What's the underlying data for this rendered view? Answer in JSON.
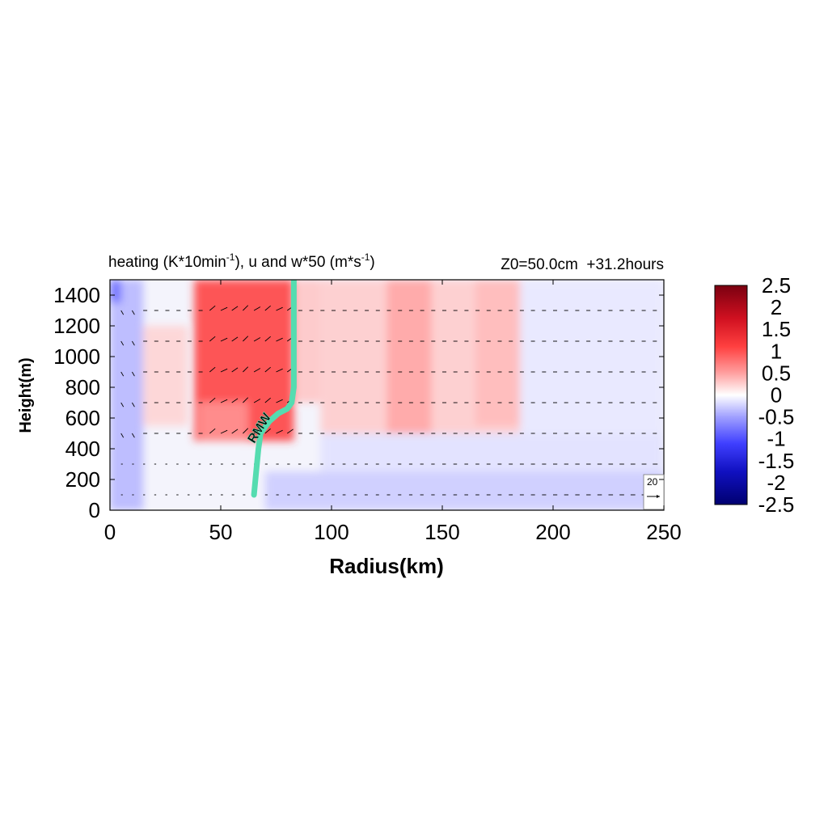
{
  "chart_data": {
    "type": "heatmap",
    "title": "heating (K*10min",
    "title_sup1": "-1",
    "title_mid": "), u and w*50 (m*s",
    "title_sup2": "-1",
    "title_end": ")",
    "subtitle_right": "Z0=50.0cm  +31.2hours",
    "xlabel": "Radius(km)",
    "ylabel": "Height(m)",
    "xlim": [
      0,
      250
    ],
    "ylim": [
      0,
      1500
    ],
    "xticks": [
      0,
      50,
      100,
      150,
      200,
      250
    ],
    "yticks": [
      0,
      200,
      400,
      600,
      800,
      1000,
      1200,
      1400
    ],
    "colorbar": {
      "ticks": [
        "2.5",
        "2",
        "1.5",
        "1",
        "0.5",
        "0",
        "-0.5",
        "-1",
        "-1.5",
        "-2",
        "-2.5"
      ],
      "range": [
        -2.5,
        2.5
      ],
      "colors": [
        "#7a0010",
        "#d01020",
        "#ff3030",
        "#ff8080",
        "#ffc8c8",
        "#ffffff",
        "#c8c8ff",
        "#8080ff",
        "#3030ff",
        "#1010c0",
        "#000070"
      ]
    },
    "rmw_label": "RMW",
    "rmw_color": "#55dcb0",
    "rmw_curve": [
      {
        "r": 65,
        "z": 100
      },
      {
        "r": 66,
        "z": 250
      },
      {
        "r": 67,
        "z": 400
      },
      {
        "r": 68,
        "z": 500
      },
      {
        "r": 72,
        "z": 580
      },
      {
        "r": 76,
        "z": 630
      },
      {
        "r": 80,
        "z": 660
      },
      {
        "r": 82,
        "z": 700
      },
      {
        "r": 83,
        "z": 800
      },
      {
        "r": 83,
        "z": 900
      },
      {
        "r": 83,
        "z": 1100
      },
      {
        "r": 83,
        "z": 1300
      },
      {
        "r": 83,
        "z": 1500
      }
    ],
    "heating_bands": [
      {
        "r0": 38,
        "r1": 83,
        "z0": 450,
        "z1": 1500,
        "value": 1.3
      },
      {
        "r0": 40,
        "r1": 62,
        "z0": 450,
        "z1": 700,
        "value": 0.7
      },
      {
        "r0": 83,
        "r1": 95,
        "z0": 700,
        "z1": 1500,
        "value": 0.4
      },
      {
        "r0": 95,
        "r1": 185,
        "z0": 500,
        "z1": 1500,
        "value": 0.35
      },
      {
        "r0": 125,
        "r1": 145,
        "z0": 500,
        "z1": 1500,
        "value": 0.6
      },
      {
        "r0": 165,
        "r1": 185,
        "z0": 550,
        "z1": 1500,
        "value": 0.45
      },
      {
        "r0": 15,
        "r1": 35,
        "z0": 550,
        "z1": 1200,
        "value": 0.3
      }
    ],
    "cooling_bands": [
      {
        "r0": 0,
        "r1": 15,
        "z0": 0,
        "z1": 1500,
        "value": -0.5
      },
      {
        "r0": 0,
        "r1": 5,
        "z0": 1350,
        "z1": 1500,
        "value": -1.0
      },
      {
        "r0": 70,
        "r1": 250,
        "z0": 0,
        "z1": 250,
        "value": -0.35
      },
      {
        "r0": 95,
        "r1": 250,
        "z0": 250,
        "z1": 500,
        "value": -0.2
      },
      {
        "r0": 185,
        "r1": 250,
        "z0": 500,
        "z1": 1500,
        "value": -0.15
      }
    ],
    "vector_levels": [
      100,
      300,
      500,
      700,
      900,
      1100,
      1300
    ],
    "vector_spacing_km": 5,
    "vector_reference_label": "20"
  }
}
